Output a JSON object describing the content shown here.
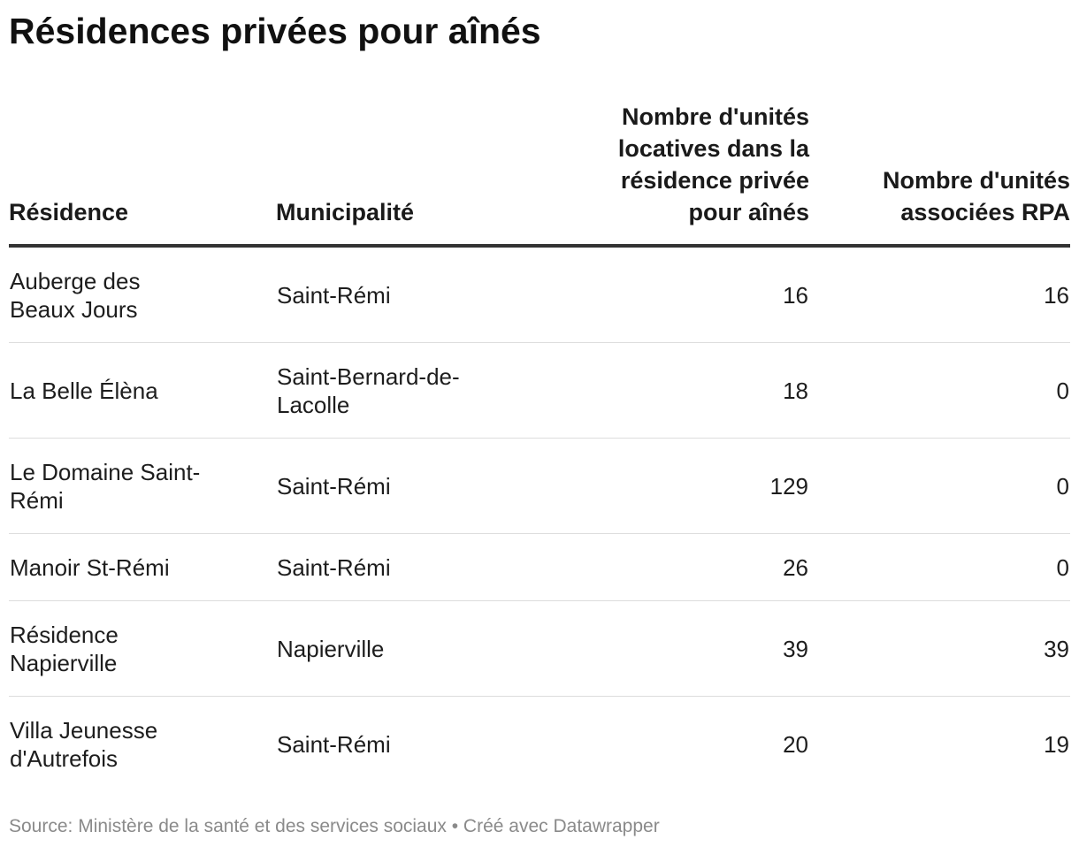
{
  "chart_data": {
    "type": "table",
    "title": "Résidences privées pour aînés",
    "columns": [
      {
        "key": "residence",
        "lines": [
          "Résidence"
        ]
      },
      {
        "key": "municipalite",
        "lines": [
          "Municipalité"
        ]
      },
      {
        "key": "unites_locatives",
        "lines": [
          "Nombre d'unités",
          "locatives dans la",
          "résidence privée",
          "pour aînés"
        ]
      },
      {
        "key": "unites_rpa",
        "lines": [
          "Nombre d'unités",
          "associées RPA"
        ]
      }
    ],
    "rows": [
      {
        "residence": [
          "Auberge des",
          "Beaux Jours"
        ],
        "municipalite": [
          "Saint-Rémi"
        ],
        "unites_locatives": 16,
        "unites_rpa": 16
      },
      {
        "residence": [
          "La Belle Élèna"
        ],
        "municipalite": [
          "Saint-Bernard-de-",
          "Lacolle"
        ],
        "unites_locatives": 18,
        "unites_rpa": 0
      },
      {
        "residence": [
          "Le Domaine Saint-",
          "Rémi"
        ],
        "municipalite": [
          "Saint-Rémi"
        ],
        "unites_locatives": 129,
        "unites_rpa": 0
      },
      {
        "residence": [
          "Manoir St-Rémi"
        ],
        "municipalite": [
          "Saint-Rémi"
        ],
        "unites_locatives": 26,
        "unites_rpa": 0
      },
      {
        "residence": [
          "Résidence",
          "Napierville"
        ],
        "municipalite": [
          "Napierville"
        ],
        "unites_locatives": 39,
        "unites_rpa": 39
      },
      {
        "residence": [
          "Villa Jeunesse",
          "d'Autrefois"
        ],
        "municipalite": [
          "Saint-Rémi"
        ],
        "unites_locatives": 20,
        "unites_rpa": 19
      }
    ]
  },
  "footer": {
    "text": "Source: Ministère de la santé et des services sociaux • Créé avec Datawrapper"
  }
}
